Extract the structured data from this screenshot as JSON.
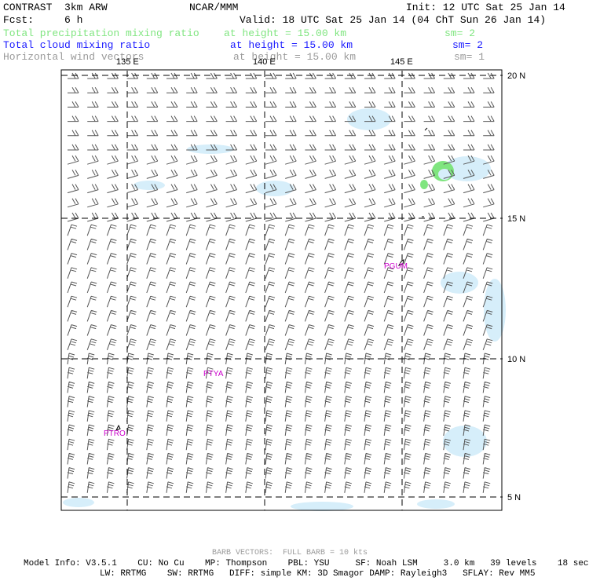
{
  "header": {
    "model": "CONTRAST  3km ARW",
    "org": "NCAR/MMM",
    "init": "Init: 12 UTC Sat 25 Jan 14",
    "fcst": "Fcst:     6 h",
    "valid": "Valid: 18 UTC Sat 25 Jan 14 (04 ChT Sun 26 Jan 14)"
  },
  "fields": [
    {
      "name": "Total precipitation mixing ratio",
      "height": "at height = 15.00 km",
      "sm": "sm= 2",
      "color": "#7fe57f"
    },
    {
      "name": "Total cloud mixing ratio",
      "height": "at height = 15.00 km",
      "sm": "sm= 2",
      "color": "#1a1aff"
    },
    {
      "name": "Horizontal wind vectors",
      "height": "at height = 15.00 km",
      "sm": "sm= 1",
      "color": "#9a9a9a"
    }
  ],
  "map": {
    "lon_labels": [
      "135 E",
      "140 E",
      "145 E"
    ],
    "lat_labels": [
      "20 N",
      "15 N",
      "10 N",
      "5 N"
    ],
    "stations": [
      "PGUM",
      "PTYA",
      "PTRO"
    ],
    "colors": {
      "cloud": "#d6eefa",
      "precip": "#7fe57f",
      "station": "#cc00cc"
    }
  },
  "footer": {
    "barb_note": "BARB VECTORS:  FULL BARB = 10 kts",
    "line1": "Model Info: V3.5.1    CU: No Cu    MP: Thompson    PBL: YSU     SF: Noah LSM     3.0 km   39 levels    18 sec",
    "line2": "LW: RRTMG    SW: RRTMG   DIFF: simple KM: 3D Smagor DAMP: Rayleigh3   SFLAY: Rev MM5"
  }
}
